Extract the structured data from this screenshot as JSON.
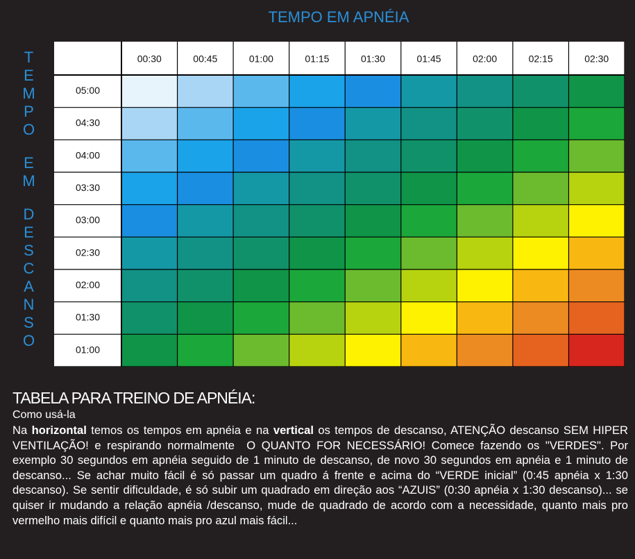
{
  "header": {
    "title": "TEMPO EM APNÉIA",
    "side_label": [
      "TEMPO",
      "EM",
      "DESCANSO"
    ]
  },
  "table": {
    "columns": [
      "00:30",
      "00:45",
      "01:00",
      "01:15",
      "01:30",
      "01:45",
      "02:00",
      "02:15",
      "02:30"
    ],
    "rows": [
      "05:00",
      "04:30",
      "04:00",
      "03:30",
      "03:00",
      "02:30",
      "02:00",
      "01:30",
      "01:00"
    ],
    "cell_colors": [
      [
        "#e8f4fc",
        "#a9d6f5",
        "#5ab8ec",
        "#1aa3e8",
        "#1a8ee0",
        "#1598a6",
        "#129185",
        "#11916a",
        "#0f9448"
      ],
      [
        "#a9d6f5",
        "#5ab8ec",
        "#1aa3e8",
        "#1a8ee0",
        "#1598a6",
        "#129185",
        "#11916a",
        "#0f9448",
        "#1ba73a"
      ],
      [
        "#5ab8ec",
        "#1aa3e8",
        "#1a8ee0",
        "#1598a6",
        "#129185",
        "#11916a",
        "#0f9448",
        "#1ba73a",
        "#6cbb2e"
      ],
      [
        "#1aa3e8",
        "#1a8ee0",
        "#1598a6",
        "#129185",
        "#11916a",
        "#0f9448",
        "#1ba73a",
        "#6cbb2e",
        "#b7d30f"
      ],
      [
        "#1a8ee0",
        "#1598a6",
        "#129185",
        "#11916a",
        "#0f9448",
        "#1ba73a",
        "#6cbb2e",
        "#b7d30f",
        "#fff200"
      ],
      [
        "#1598a6",
        "#129185",
        "#11916a",
        "#0f9448",
        "#1ba73a",
        "#6cbb2e",
        "#b7d30f",
        "#fff200",
        "#f8b811"
      ],
      [
        "#129185",
        "#11916a",
        "#0f9448",
        "#1ba73a",
        "#6cbb2e",
        "#b7d30f",
        "#fff200",
        "#f8b811",
        "#ed8b23"
      ],
      [
        "#11916a",
        "#0f9448",
        "#1ba73a",
        "#6cbb2e",
        "#b7d30f",
        "#fff200",
        "#f8b811",
        "#ed8b23",
        "#e5631f"
      ],
      [
        "#0f9448",
        "#1ba73a",
        "#6cbb2e",
        "#b7d30f",
        "#fff200",
        "#f8b811",
        "#ed8b23",
        "#e5631f",
        "#d7261e"
      ]
    ]
  },
  "text": {
    "heading": "TABELA PARA TREINO DE APNÉIA:",
    "subheading": "Como usá-la",
    "runs": [
      {
        "text": "Na ",
        "bold": false
      },
      {
        "text": "horizontal",
        "bold": true
      },
      {
        "text": " temos os tempos em apnéia e na ",
        "bold": false
      },
      {
        "text": "vertical",
        "bold": true
      },
      {
        "text": " os tempos de descanso, ATENÇÃO descanso SEM HIPER VENTILAÇÃO! e respirando normalmente  O QUANTO FOR NECESSÁRIO! Comece fazendo os \"VERDES\". Por exemplo 30 segundos em apnéia seguido de 1 minuto de descanso, de novo 30 segundos em apnéia e 1 minuto de descanso... Se achar muito fácil é só passar um quadro á frente e acima do “VERDE inicial” (0:45 apnéia x 1:30 descanso). Se sentir dificuldade, é só subir um quadrado em direção aos “AZUIS” (0:30 apnéia x 1:30 descanso)... se quiser ir mudando a relação apnéia /descanso, mude de quadrado de acordo com a necessidade, quanto mais pro vermelho mais difícil e quanto mais pro azul mais fácil...",
        "bold": false
      }
    ]
  }
}
